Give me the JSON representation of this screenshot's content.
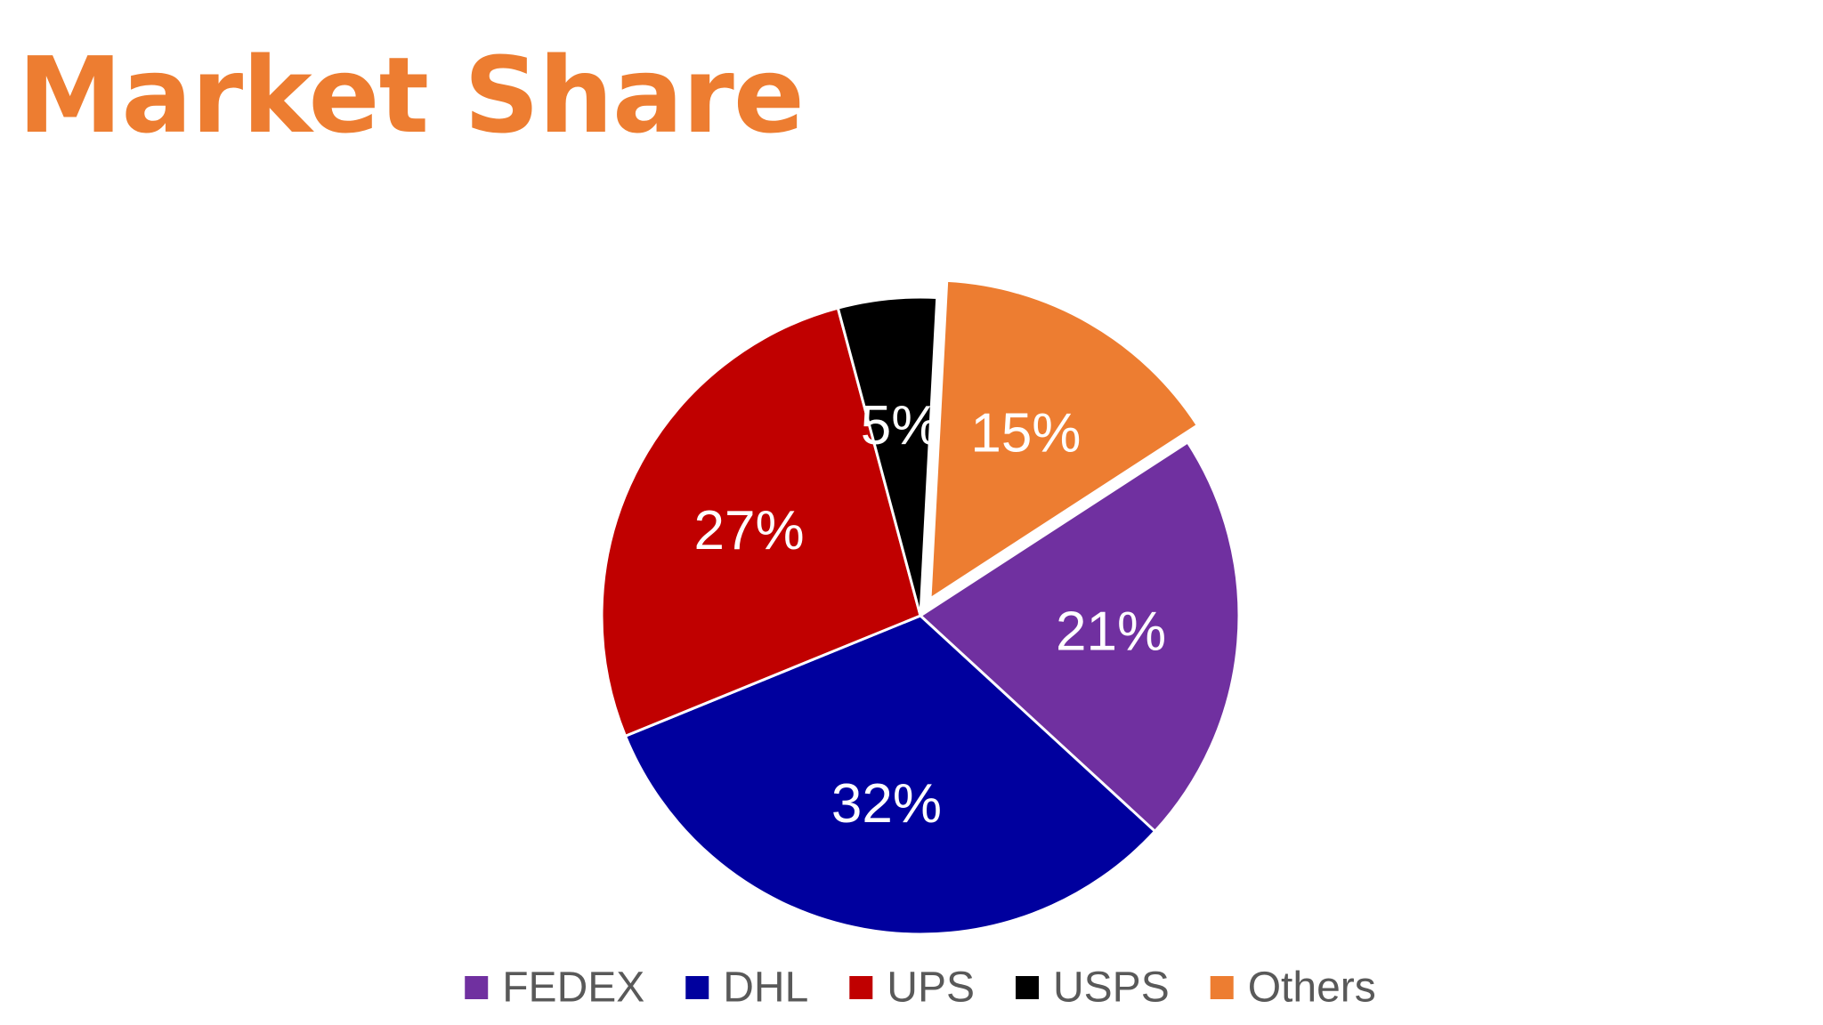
{
  "slide": {
    "title": "Market Share"
  },
  "chart_data": {
    "type": "pie",
    "title": "",
    "categories": [
      "FEDEX",
      "DHL",
      "UPS",
      "USPS",
      "Others"
    ],
    "values": [
      21,
      32,
      27,
      5,
      15
    ],
    "labels": [
      "21%",
      "32%",
      "27%",
      "5%",
      "15%"
    ],
    "colors": [
      "#7030A0",
      "#00009E",
      "#C00000",
      "#000000",
      "#ED7D31"
    ],
    "exploded": [
      "Others"
    ],
    "legend": "bottom"
  }
}
